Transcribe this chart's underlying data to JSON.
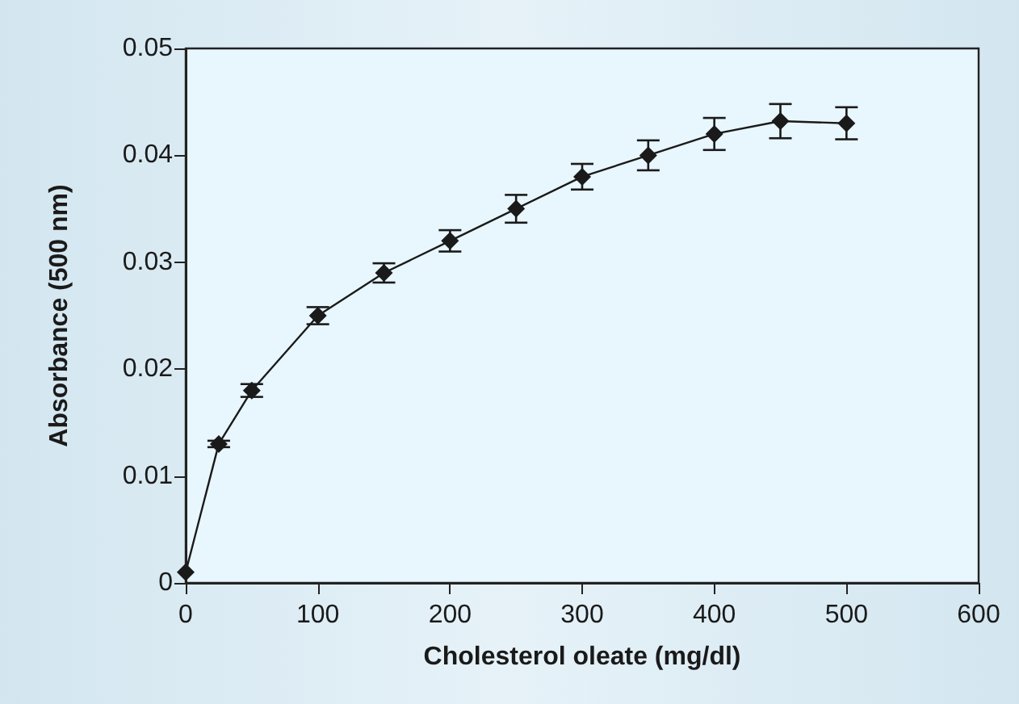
{
  "chart_data": {
    "type": "line",
    "xlabel": "Cholesterol oleate (mg/dl)",
    "ylabel": "Absorbance (500 nm)",
    "x": [
      0,
      25,
      50,
      100,
      150,
      200,
      250,
      300,
      350,
      400,
      450,
      500
    ],
    "series": [
      {
        "color": "#1a1a1a",
        "values": [
          0.001,
          0.013,
          0.018,
          0.025,
          0.029,
          0.032,
          0.035,
          0.038,
          0.04,
          0.042,
          0.0432,
          0.043
        ],
        "errors": [
          null,
          0.0003,
          0.0006,
          0.0008,
          0.0009,
          0.001,
          0.0013,
          0.0012,
          0.0014,
          0.0015,
          0.0016,
          0.0015
        ]
      }
    ],
    "xlim": [
      0,
      600
    ],
    "xticks": [
      0,
      100,
      200,
      300,
      400,
      500,
      600
    ],
    "ylim": [
      0,
      0.05
    ],
    "yticks": [
      0,
      0.01,
      0.02,
      0.03,
      0.04,
      0.05
    ],
    "marker": "diamond",
    "line_style": "solid",
    "grid": false
  }
}
